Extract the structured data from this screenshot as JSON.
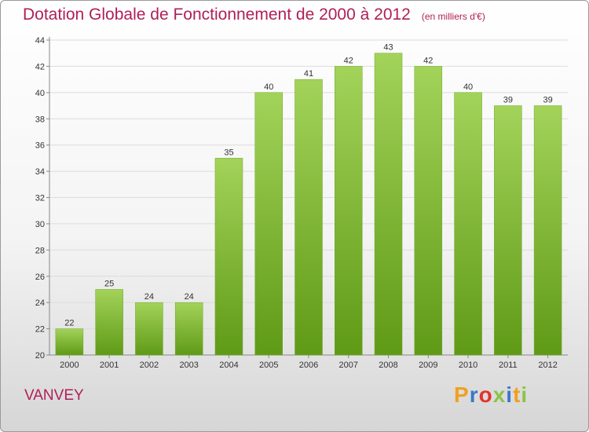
{
  "chart_data": {
    "type": "bar",
    "title": "Dotation Globale de Fonctionnement de 2000 à 2012",
    "subtitle": "(en milliers d'€)",
    "categories": [
      "2000",
      "2001",
      "2002",
      "2003",
      "2004",
      "2005",
      "2006",
      "2007",
      "2008",
      "2009",
      "2010",
      "2011",
      "2012"
    ],
    "values": [
      22,
      25,
      24,
      24,
      35,
      40,
      41,
      42,
      43,
      42,
      40,
      39,
      39
    ],
    "xlabel": "",
    "ylabel": "",
    "ylim": [
      20,
      44
    ],
    "yticks": [
      20,
      22,
      24,
      26,
      28,
      30,
      32,
      34,
      36,
      38,
      40,
      42,
      44
    ],
    "grid": true,
    "legend": "none",
    "bar_color_top": "#a3d35a",
    "bar_color_bottom": "#5f9a16"
  },
  "footer": {
    "commune": "VANVEY",
    "logo": [
      "P",
      "r",
      "o",
      "x",
      "i",
      "t",
      "i"
    ],
    "logo_colors": [
      "#f0a020",
      "#3b78c8",
      "#e3332b",
      "#8bc34a",
      "#3b78c8",
      "#f0a020",
      "#8bc34a"
    ]
  }
}
